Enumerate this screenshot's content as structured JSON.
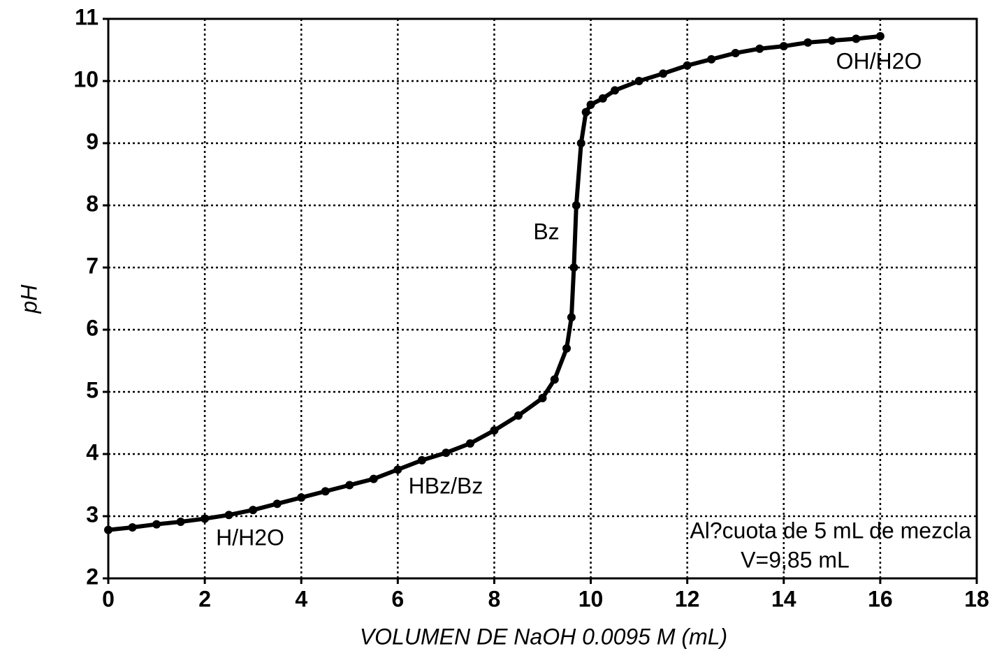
{
  "chart_data": {
    "type": "line",
    "x_label": "VOLUMEN DE NaOH 0.0095 M (mL)",
    "y_label": "pH",
    "x": [
      0,
      0.5,
      1,
      1.5,
      2,
      2.5,
      3,
      3.5,
      4,
      4.5,
      5,
      5.5,
      6,
      6.5,
      7,
      7.5,
      8,
      8.5,
      9,
      9.25,
      9.5,
      9.6,
      9.65,
      9.7,
      9.8,
      9.9,
      10,
      10.25,
      10.5,
      11,
      11.5,
      12,
      12.5,
      13,
      13.5,
      14,
      14.5,
      15,
      15.5,
      16
    ],
    "values": [
      2.78,
      2.82,
      2.87,
      2.91,
      2.96,
      3.02,
      3.1,
      3.2,
      3.3,
      3.4,
      3.5,
      3.6,
      3.75,
      3.9,
      4.02,
      4.17,
      4.38,
      4.62,
      4.9,
      5.2,
      5.7,
      6.2,
      7.0,
      8.0,
      9.0,
      9.5,
      9.62,
      9.72,
      9.85,
      10.0,
      10.12,
      10.25,
      10.35,
      10.45,
      10.52,
      10.56,
      10.62,
      10.65,
      10.68,
      10.72
    ],
    "color": "#000000",
    "xlim": [
      0,
      18
    ],
    "xticks": [
      0,
      2,
      4,
      6,
      8,
      10,
      12,
      14,
      16,
      18
    ],
    "ylim": [
      2,
      11
    ],
    "yticks": [
      2,
      3,
      4,
      5,
      6,
      7,
      8,
      9,
      10,
      11
    ],
    "grid": true,
    "annotations": [
      "OH/H2O",
      "Bz",
      "HBz/Bz",
      "H/H2O",
      "Al?cuota de 5 mL de mezcla",
      "V=9,85 mL"
    ]
  }
}
